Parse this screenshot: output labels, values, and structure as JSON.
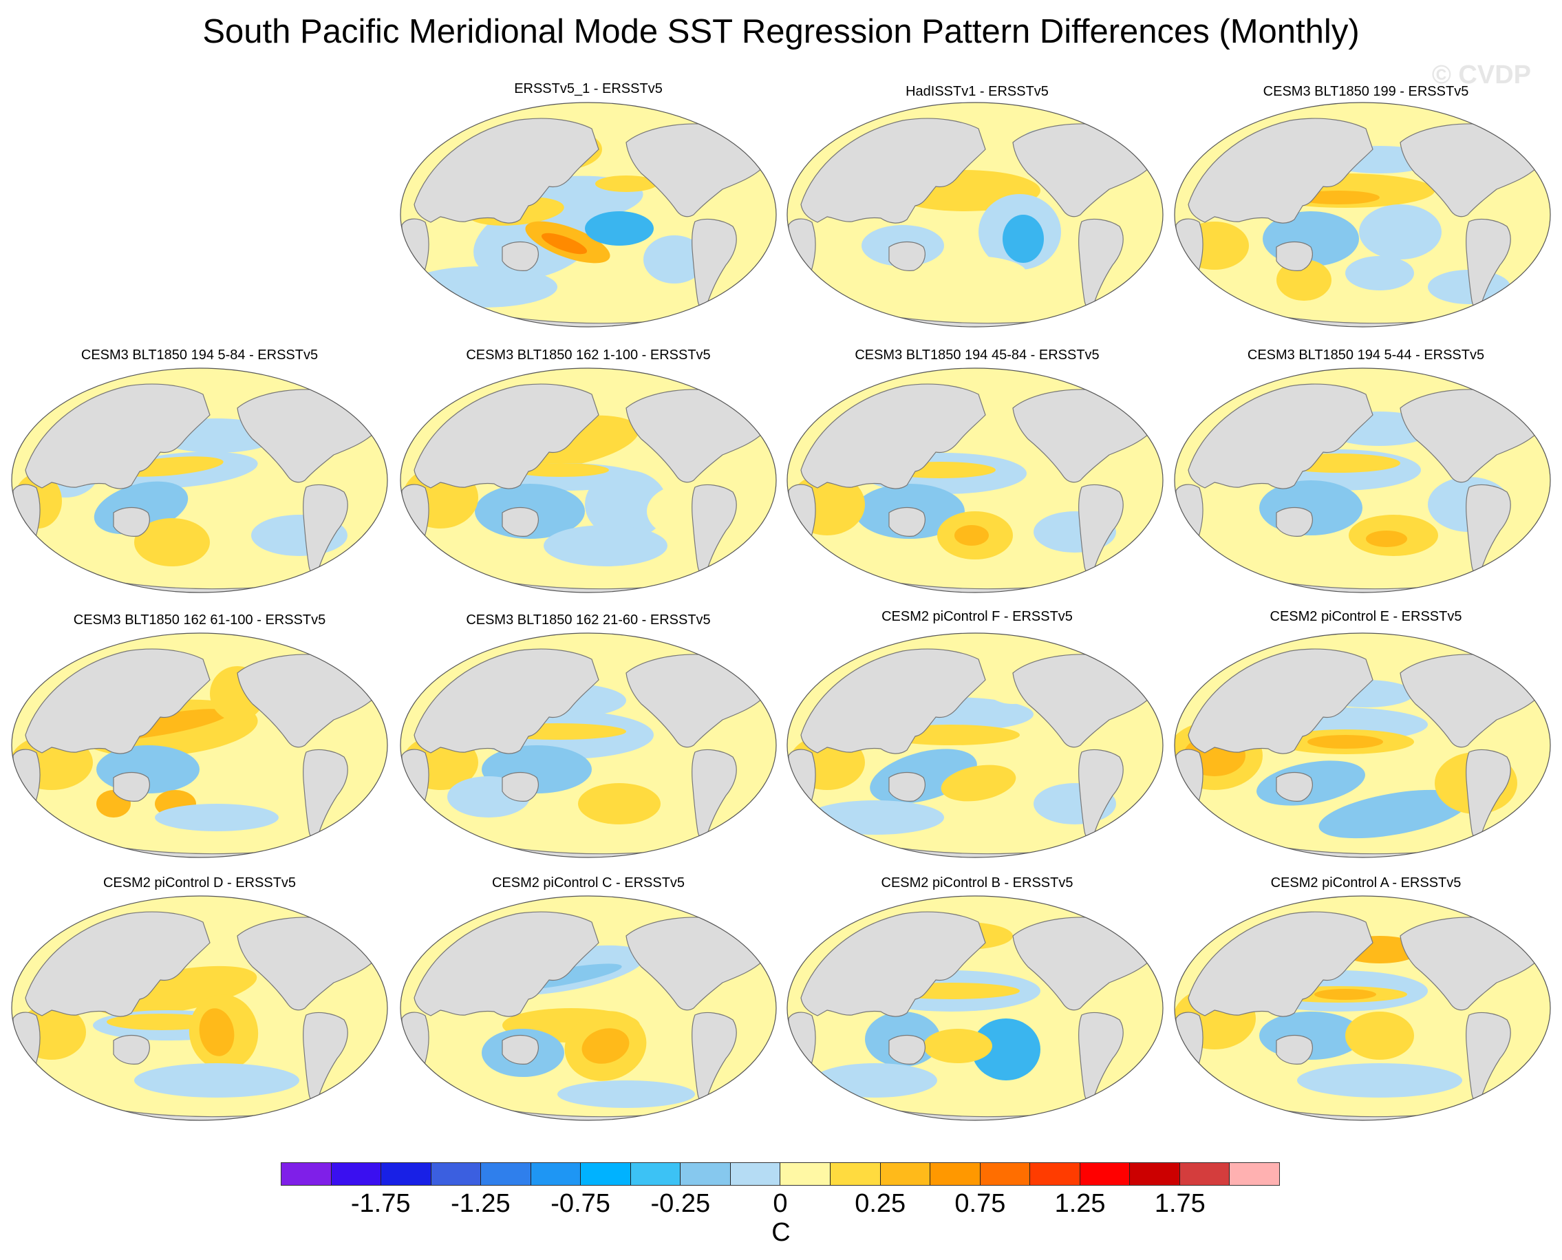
{
  "title": "South Pacific Meridional Mode SST Regression Pattern Differences (Monthly)",
  "watermark": "© CVDP",
  "colors": {
    "land": "#dcdcdc",
    "coast": "#777777",
    "neg_weak": "#b5dcf4",
    "neg_mid": "#86c8ee",
    "neg_strong": "#3ab5ef",
    "pos_weak": "#fff8a4",
    "pos_mid": "#ffdb3f",
    "pos_strong": "#ffba1a",
    "pos_vstrong": "#ff8a00"
  },
  "panels": [
    {
      "title": "ERSSTv5_1 - ERSSTv5",
      "pattern": 0
    },
    {
      "title": "HadISSTv1 - ERSSTv5",
      "pattern": 1
    },
    {
      "title": "CESM3 BLT1850 199 - ERSSTv5",
      "pattern": 2
    },
    {
      "title": "CESM3 BLT1850 194 5-84 - ERSSTv5",
      "pattern": 3
    },
    {
      "title": "CESM3 BLT1850 162 1-100 - ERSSTv5",
      "pattern": 4
    },
    {
      "title": "CESM3 BLT1850 194 45-84 - ERSSTv5",
      "pattern": 5
    },
    {
      "title": "CESM3 BLT1850 194 5-44 - ERSSTv5",
      "pattern": 6
    },
    {
      "title": "CESM3 BLT1850 162 61-100 - ERSSTv5",
      "pattern": 7
    },
    {
      "title": "CESM3 BLT1850 162 21-60 - ERSSTv5",
      "pattern": 8
    },
    {
      "title": "CESM2 piControl F - ERSSTv5",
      "pattern": 9
    },
    {
      "title": "CESM2 piControl E - ERSSTv5",
      "pattern": 10
    },
    {
      "title": "CESM2 piControl D - ERSSTv5",
      "pattern": 11
    },
    {
      "title": "CESM2 piControl C - ERSSTv5",
      "pattern": 12
    },
    {
      "title": "CESM2 piControl B - ERSSTv5",
      "pattern": 13
    },
    {
      "title": "CESM2 piControl A - ERSSTv5",
      "pattern": 14
    }
  ],
  "colorbar": {
    "colors": [
      "#7f1fe8",
      "#3a0ff0",
      "#1820e6",
      "#3b5fe0",
      "#2f7fec",
      "#1e96f4",
      "#00b2ff",
      "#3cc2f5",
      "#86c8ee",
      "#b5dcf4",
      "#fff8a4",
      "#ffdb3f",
      "#ffba1a",
      "#ff9800",
      "#ff6e00",
      "#ff3c00",
      "#ff0000",
      "#cc0000",
      "#d43d3d",
      "#ffb1b1"
    ],
    "tick_labels": [
      "-1.75",
      "-1.25",
      "-0.75",
      "-0.25",
      "0",
      "0.25",
      "0.75",
      "1.25",
      "1.75"
    ],
    "unit": "C"
  }
}
